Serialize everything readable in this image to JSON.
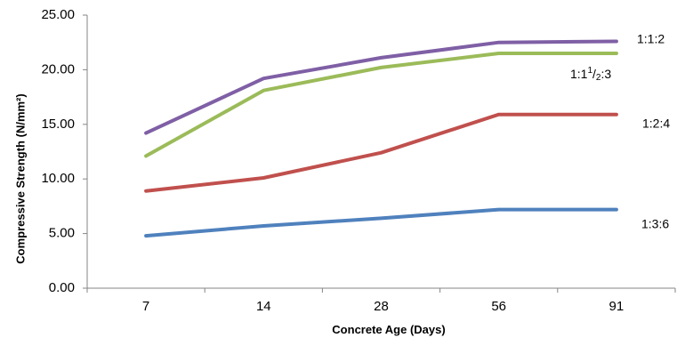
{
  "chart_data": {
    "type": "line",
    "xlabel": "Concrete Age (Days)",
    "ylabel": "Compressive Strength (N/mm²)",
    "categories": [
      "7",
      "14",
      "28",
      "56",
      "91"
    ],
    "ylim": [
      0,
      25
    ],
    "yticks": [
      "0.00",
      "5.00",
      "10.00",
      "15.00",
      "20.00",
      "25.00"
    ],
    "grid": false,
    "series": [
      {
        "name": "1:1:2",
        "label_main": "1:1:2",
        "label_sup": "",
        "label_sub": "",
        "label_tail": "",
        "color": "#7f5fa5",
        "values": [
          14.2,
          19.2,
          21.1,
          22.5,
          22.6
        ]
      },
      {
        "name": "1:1½:3",
        "label_main": "1:1",
        "label_sup": "1",
        "label_sub": "2",
        "label_tail": ":3",
        "color": "#9bbb59",
        "values": [
          12.1,
          18.1,
          20.2,
          21.5,
          21.5
        ]
      },
      {
        "name": "1:2:4",
        "label_main": "1:2:4",
        "label_sup": "",
        "label_sub": "",
        "label_tail": "",
        "color": "#c0504d",
        "values": [
          8.9,
          10.1,
          12.4,
          15.9,
          15.9
        ]
      },
      {
        "name": "1:3:6",
        "label_main": "1:3:6",
        "label_sup": "",
        "label_sub": "",
        "label_tail": "",
        "color": "#4f81bd",
        "values": [
          4.8,
          5.7,
          6.4,
          7.2,
          7.2
        ]
      }
    ]
  }
}
